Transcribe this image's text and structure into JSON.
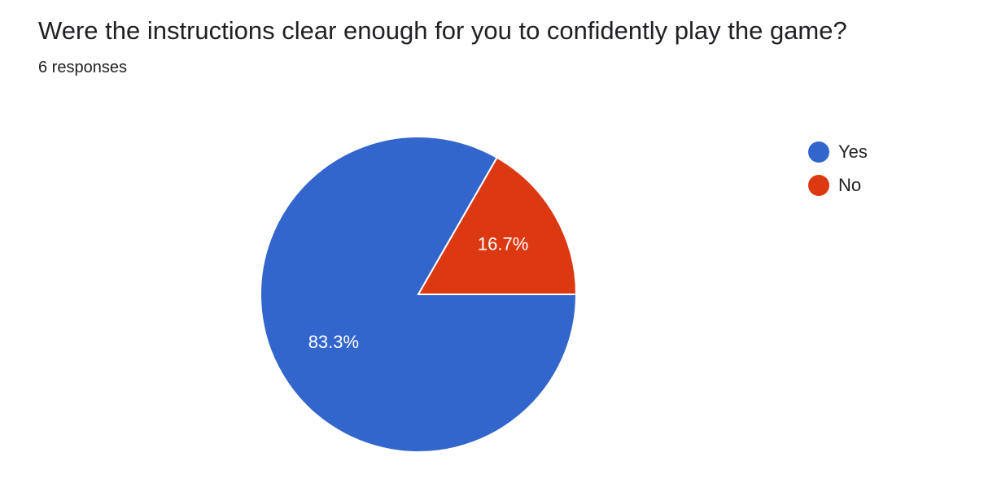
{
  "question": {
    "title": "Were the instructions clear enough for you to confidently play the game?",
    "responses": "6 responses"
  },
  "chart_data": {
    "type": "pie",
    "categories": [
      "Yes",
      "No"
    ],
    "values": [
      83.3,
      16.7
    ],
    "labels": [
      "83.3%",
      "16.7%"
    ],
    "colors": [
      "#3366cc",
      "#dc3912"
    ],
    "legend": "right"
  }
}
